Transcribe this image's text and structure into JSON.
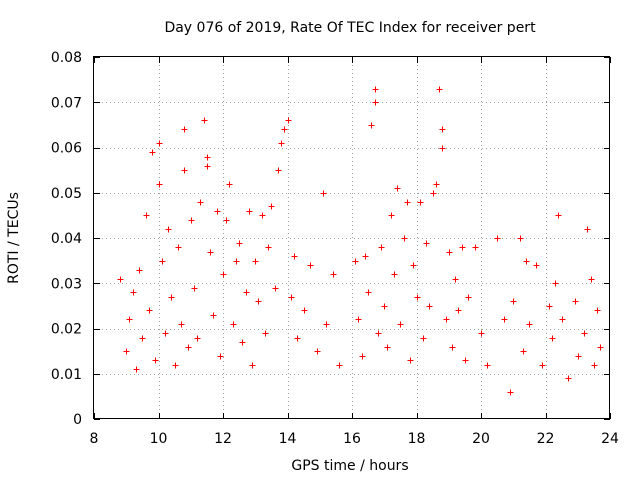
{
  "chart_data": {
    "type": "scatter",
    "title": "Day 076 of 2019, Rate Of TEC Index for receiver pert",
    "xlabel": "GPS time / hours",
    "ylabel": "ROTI / TECUs",
    "xlim": [
      8,
      24
    ],
    "ylim": [
      0,
      0.08
    ],
    "xticks": [
      8,
      10,
      12,
      14,
      16,
      18,
      20,
      22,
      24
    ],
    "xtick_labels": [
      "8",
      "10",
      "12",
      "14",
      "16",
      "18",
      "20",
      "22",
      "24"
    ],
    "yticks": [
      0,
      0.01,
      0.02,
      0.03,
      0.04,
      0.05,
      0.06,
      0.07,
      0.08
    ],
    "ytick_labels": [
      "0",
      "0.01",
      "0.02",
      "0.03",
      "0.04",
      "0.05",
      "0.06",
      "0.07",
      "0.08"
    ],
    "grid": true,
    "marker": "+",
    "marker_color": "#ff0000",
    "series": [
      {
        "name": "ROTI",
        "points": [
          [
            8.8,
            0.031
          ],
          [
            9.0,
            0.015
          ],
          [
            9.1,
            0.022
          ],
          [
            9.2,
            0.028
          ],
          [
            9.3,
            0.011
          ],
          [
            9.4,
            0.033
          ],
          [
            9.5,
            0.018
          ],
          [
            9.6,
            0.045
          ],
          [
            9.7,
            0.024
          ],
          [
            9.8,
            0.059
          ],
          [
            9.9,
            0.013
          ],
          [
            10.0,
            0.061
          ],
          [
            10.0,
            0.052
          ],
          [
            10.1,
            0.035
          ],
          [
            10.2,
            0.019
          ],
          [
            10.3,
            0.042
          ],
          [
            10.4,
            0.027
          ],
          [
            10.5,
            0.012
          ],
          [
            10.6,
            0.038
          ],
          [
            10.7,
            0.021
          ],
          [
            10.8,
            0.064
          ],
          [
            10.8,
            0.055
          ],
          [
            10.9,
            0.016
          ],
          [
            11.0,
            0.044
          ],
          [
            11.1,
            0.029
          ],
          [
            11.2,
            0.018
          ],
          [
            11.3,
            0.048
          ],
          [
            11.4,
            0.066
          ],
          [
            11.5,
            0.056
          ],
          [
            11.5,
            0.058
          ],
          [
            11.6,
            0.037
          ],
          [
            11.7,
            0.023
          ],
          [
            11.8,
            0.046
          ],
          [
            11.9,
            0.014
          ],
          [
            12.0,
            0.032
          ],
          [
            12.1,
            0.044
          ],
          [
            12.2,
            0.052
          ],
          [
            12.3,
            0.021
          ],
          [
            12.4,
            0.035
          ],
          [
            12.5,
            0.039
          ],
          [
            12.6,
            0.017
          ],
          [
            12.7,
            0.028
          ],
          [
            12.8,
            0.046
          ],
          [
            12.9,
            0.012
          ],
          [
            13.0,
            0.035
          ],
          [
            13.1,
            0.026
          ],
          [
            13.2,
            0.045
          ],
          [
            13.3,
            0.019
          ],
          [
            13.4,
            0.038
          ],
          [
            13.5,
            0.047
          ],
          [
            13.6,
            0.029
          ],
          [
            13.7,
            0.055
          ],
          [
            13.8,
            0.061
          ],
          [
            13.9,
            0.064
          ],
          [
            14.0,
            0.066
          ],
          [
            14.1,
            0.027
          ],
          [
            14.2,
            0.036
          ],
          [
            14.3,
            0.018
          ],
          [
            14.5,
            0.024
          ],
          [
            14.7,
            0.034
          ],
          [
            14.9,
            0.015
          ],
          [
            15.1,
            0.05
          ],
          [
            15.2,
            0.021
          ],
          [
            15.4,
            0.032
          ],
          [
            15.6,
            0.012
          ],
          [
            16.1,
            0.035
          ],
          [
            16.2,
            0.022
          ],
          [
            16.3,
            0.014
          ],
          [
            16.4,
            0.036
          ],
          [
            16.5,
            0.028
          ],
          [
            16.6,
            0.065
          ],
          [
            16.7,
            0.073
          ],
          [
            16.7,
            0.07
          ],
          [
            16.8,
            0.019
          ],
          [
            16.9,
            0.038
          ],
          [
            17.0,
            0.025
          ],
          [
            17.1,
            0.016
          ],
          [
            17.2,
            0.045
          ],
          [
            17.3,
            0.032
          ],
          [
            17.4,
            0.051
          ],
          [
            17.5,
            0.021
          ],
          [
            17.6,
            0.04
          ],
          [
            17.7,
            0.048
          ],
          [
            17.8,
            0.013
          ],
          [
            17.9,
            0.034
          ],
          [
            18.0,
            0.027
          ],
          [
            18.1,
            0.048
          ],
          [
            18.2,
            0.018
          ],
          [
            18.3,
            0.039
          ],
          [
            18.4,
            0.025
          ],
          [
            18.5,
            0.05
          ],
          [
            18.6,
            0.052
          ],
          [
            18.7,
            0.073
          ],
          [
            18.8,
            0.064
          ],
          [
            18.8,
            0.06
          ],
          [
            18.9,
            0.022
          ],
          [
            19.0,
            0.037
          ],
          [
            19.1,
            0.016
          ],
          [
            19.2,
            0.031
          ],
          [
            19.3,
            0.024
          ],
          [
            19.4,
            0.038
          ],
          [
            19.5,
            0.013
          ],
          [
            19.6,
            0.027
          ],
          [
            19.8,
            0.038
          ],
          [
            20.0,
            0.019
          ],
          [
            20.2,
            0.012
          ],
          [
            20.5,
            0.04
          ],
          [
            20.7,
            0.022
          ],
          [
            20.9,
            0.006
          ],
          [
            21.0,
            0.026
          ],
          [
            21.2,
            0.04
          ],
          [
            21.3,
            0.015
          ],
          [
            21.4,
            0.035
          ],
          [
            21.5,
            0.021
          ],
          [
            21.7,
            0.034
          ],
          [
            21.9,
            0.012
          ],
          [
            22.1,
            0.025
          ],
          [
            22.2,
            0.018
          ],
          [
            22.3,
            0.03
          ],
          [
            22.4,
            0.045
          ],
          [
            22.5,
            0.022
          ],
          [
            22.7,
            0.009
          ],
          [
            22.9,
            0.026
          ],
          [
            23.0,
            0.014
          ],
          [
            23.2,
            0.019
          ],
          [
            23.3,
            0.042
          ],
          [
            23.4,
            0.031
          ],
          [
            23.5,
            0.012
          ],
          [
            23.6,
            0.024
          ],
          [
            23.7,
            0.016
          ]
        ]
      }
    ]
  }
}
